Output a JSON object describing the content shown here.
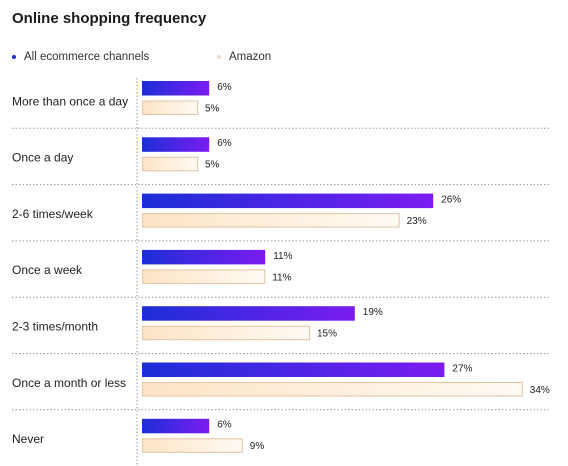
{
  "chart_data": {
    "type": "bar",
    "orientation": "horizontal",
    "title": "Online shopping frequency",
    "categories": [
      "More than once a day",
      "Once a day",
      "2-6 times/week",
      "Once a week",
      "2-3 times/month",
      "Once a month or less",
      "Never"
    ],
    "series": [
      {
        "name": "All ecommerce channels",
        "values": [
          6,
          6,
          26,
          11,
          19,
          27,
          6
        ],
        "labels": [
          "6%",
          "6%",
          "26%",
          "11%",
          "19%",
          "27%",
          "6%"
        ]
      },
      {
        "name": "Amazon",
        "values": [
          5,
          5,
          23,
          11,
          15,
          34,
          9
        ],
        "labels": [
          "5%",
          "5%",
          "23%",
          "11%",
          "15%",
          "34%",
          "9%"
        ]
      }
    ],
    "legend_position": "top-left",
    "grid": false
  },
  "colors": {
    "series_a_start": "#1c2ed6",
    "series_a_end": "#7b1cf2",
    "series_b_start": "#fde4c6",
    "series_b_end": "#fffaf3",
    "series_b_border": "#e3c3a3",
    "legend_dot_a": "#1c2ed6",
    "legend_dot_b": "#e8d9c2",
    "divider": "#9a9a9a"
  }
}
